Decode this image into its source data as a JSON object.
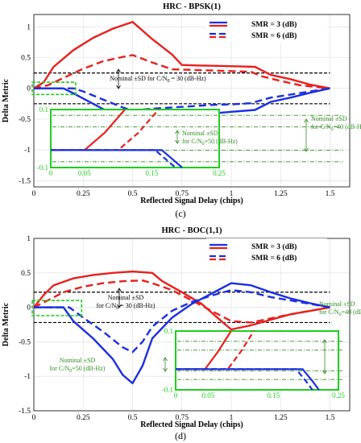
{
  "panels": [
    {
      "caption": "(c)",
      "legend_labels": [
        "SMR = 3 (dB)",
        "SMR = 6 (dB)"
      ]
    },
    {
      "caption": "(d)",
      "legend_labels": [
        "SMR = 3 (dB)",
        "SMR = 6 (dB)"
      ]
    }
  ],
  "colors": {
    "red": "#e8201c",
    "blue": "#1a2fe0",
    "green": "#1ecf1e",
    "darkgreen": "#2f8f1f",
    "black": "#000000"
  },
  "chart_data": [
    {
      "type": "line",
      "title": "HRC - BPSK(1)",
      "xlabel": "Reflected Signal Delay (chips)",
      "ylabel": "Delta Metric",
      "xlim": [
        0,
        1.6
      ],
      "ylim": [
        -1.6,
        1.2
      ],
      "xticks": [
        "0",
        "0.25",
        "0.5",
        "0.75",
        "1",
        "1.25",
        "1.5"
      ],
      "xtick_values": [
        0,
        0.25,
        0.5,
        0.75,
        1,
        1.25,
        1.5
      ],
      "yticks": [
        "1",
        "0.5",
        "0",
        "-0.5",
        "-1",
        "-1.5"
      ],
      "ytick_values": [
        1,
        0.5,
        0,
        -0.5,
        -1,
        -1.5
      ],
      "legend_position": "top-right",
      "series": [
        {
          "name": "SMR = 3 (dB)",
          "color": "red",
          "dash": false,
          "x": [
            0,
            0.05,
            0.1,
            0.2,
            0.3,
            0.4,
            0.5,
            0.6,
            0.7,
            0.75,
            0.85,
            1.0,
            1.12,
            1.2,
            1.3,
            1.4,
            1.5
          ],
          "y": [
            0,
            0.1,
            0.35,
            0.62,
            0.82,
            0.97,
            1.08,
            0.8,
            0.55,
            0.38,
            0.37,
            0.36,
            0.35,
            0.22,
            0.15,
            0.06,
            0
          ]
        },
        {
          "name": "SMR = 6 (dB)",
          "color": "red",
          "dash": true,
          "x": [
            0,
            0.07,
            0.15,
            0.25,
            0.35,
            0.45,
            0.5,
            0.6,
            0.7,
            0.8,
            0.9,
            1.0,
            1.1,
            1.15,
            1.25,
            1.35,
            1.5
          ],
          "y": [
            0,
            0.05,
            0.17,
            0.32,
            0.44,
            0.51,
            0.54,
            0.42,
            0.31,
            0.3,
            0.29,
            0.28,
            0.27,
            0.2,
            0.12,
            0.05,
            0
          ]
        },
        {
          "name": "SMR = 3 (dB)",
          "color": "blue",
          "dash": false,
          "x": [
            0,
            0.15,
            0.2,
            0.3,
            0.4,
            0.5,
            0.6,
            0.7,
            0.8,
            0.9,
            1.0,
            1.12,
            1.2,
            1.3,
            1.4,
            1.5
          ],
          "y": [
            0,
            0,
            -0.08,
            -0.25,
            -0.42,
            -0.52,
            -0.5,
            -0.47,
            -0.44,
            -0.41,
            -0.38,
            -0.35,
            -0.22,
            -0.15,
            -0.07,
            0
          ]
        },
        {
          "name": "SMR = 6 (dB)",
          "color": "blue",
          "dash": true,
          "x": [
            0,
            0.2,
            0.25,
            0.35,
            0.45,
            0.5,
            0.6,
            0.7,
            0.8,
            0.9,
            1.0,
            1.1,
            1.2,
            1.3,
            1.4,
            1.5
          ],
          "y": [
            0,
            0,
            -0.05,
            -0.18,
            -0.31,
            -0.36,
            -0.33,
            -0.31,
            -0.29,
            -0.27,
            -0.26,
            -0.24,
            -0.15,
            -0.1,
            -0.05,
            0
          ]
        }
      ],
      "thresholds": [
        {
          "y": 0.25,
          "color": "black"
        },
        {
          "y": -0.25,
          "color": "black"
        }
      ],
      "annotations": [
        {
          "text": "Nominal ±SD  for C/N",
          "sub": "0",
          "tail": " = 30 (dB-Hz)",
          "color": "black"
        }
      ],
      "inset": {
        "xlim": [
          0,
          0.25
        ],
        "ylim": [
          -0.1,
          0.1
        ],
        "xticks": [
          "0",
          "0.05",
          "0.15",
          "0.25"
        ],
        "xtick_values": [
          0,
          0.05,
          0.15,
          0.25
        ],
        "yticks": [
          "0.1",
          "-0.1"
        ],
        "ytick_values": [
          0.1,
          -0.1
        ],
        "lines": [
          {
            "color": "red",
            "dash": false,
            "x": [
              0,
              0.05,
              0.08,
              0.11
            ],
            "y": [
              -0.04,
              -0.04,
              0.02,
              0.1
            ]
          },
          {
            "color": "red",
            "dash": true,
            "x": [
              0,
              0.1,
              0.13,
              0.16
            ],
            "y": [
              -0.04,
              -0.04,
              0.02,
              0.1
            ]
          },
          {
            "color": "blue",
            "dash": false,
            "x": [
              0,
              0.165,
              0.18,
              0.195
            ],
            "y": [
              -0.04,
              -0.04,
              -0.07,
              -0.1
            ]
          },
          {
            "color": "blue",
            "dash": true,
            "x": [
              0,
              0.155,
              0.17,
              0.185
            ],
            "y": [
              -0.04,
              -0.04,
              -0.07,
              -0.1
            ]
          }
        ],
        "thresholds": [
          {
            "y": 0.08,
            "color": "darkgreen"
          },
          {
            "y": 0.04,
            "color": "darkgreen"
          },
          {
            "y": -0.04,
            "color": "darkgreen"
          },
          {
            "y": -0.08,
            "color": "darkgreen"
          }
        ],
        "annotations": [
          {
            "text1": "Nominal ±SD",
            "text2": "for C/N",
            "sub": "0",
            "tail": "=50 (dB-Hz)",
            "color": "darkgreen"
          },
          {
            "text1": "Nominal ±SD",
            "text2": "for C/N",
            "sub": "0",
            "tail": "=40 (dB-Hz)",
            "color": "darkgreen"
          }
        ]
      }
    },
    {
      "type": "line",
      "title": "HRC - BOC(1,1)",
      "xlabel": "Reflected Signal Delay (chips)",
      "ylabel": "Delta Metric",
      "xlim": [
        0,
        1.6
      ],
      "ylim": [
        -1.5,
        1.0
      ],
      "xticks": [
        "0",
        "0.25",
        "0.5",
        "0.75",
        "1",
        "1.25",
        "1.5"
      ],
      "xtick_values": [
        0,
        0.25,
        0.5,
        0.75,
        1,
        1.25,
        1.5
      ],
      "yticks": [
        "1",
        "0.5",
        "0",
        "-0.5",
        "-1",
        "-1.5"
      ],
      "ytick_values": [
        1,
        0.5,
        0,
        -0.5,
        -1,
        -1.5
      ],
      "legend_position": "top-right",
      "series": [
        {
          "name": "SMR = 3 (dB)",
          "color": "red",
          "dash": false,
          "x": [
            0,
            0.05,
            0.1,
            0.2,
            0.3,
            0.4,
            0.5,
            0.6,
            0.65,
            0.75,
            0.85,
            0.95,
            1.0,
            1.1,
            1.2,
            1.3,
            1.4,
            1.5
          ],
          "y": [
            0,
            0.18,
            0.32,
            0.42,
            0.47,
            0.5,
            0.52,
            0.5,
            0.38,
            0.22,
            0.05,
            -0.2,
            -0.32,
            -0.26,
            -0.18,
            -0.1,
            -0.05,
            0
          ]
        },
        {
          "name": "SMR = 6 (dB)",
          "color": "red",
          "dash": true,
          "x": [
            0,
            0.07,
            0.15,
            0.25,
            0.35,
            0.45,
            0.55,
            0.6,
            0.7,
            0.8,
            0.9,
            1.0,
            1.1,
            1.2,
            1.3,
            1.4,
            1.5
          ],
          "y": [
            0,
            0.1,
            0.22,
            0.3,
            0.35,
            0.38,
            0.39,
            0.35,
            0.25,
            0.1,
            -0.05,
            -0.2,
            -0.22,
            -0.16,
            -0.1,
            -0.05,
            0
          ]
        },
        {
          "name": "SMR = 3 (dB)",
          "color": "blue",
          "dash": false,
          "x": [
            0,
            0.15,
            0.2,
            0.3,
            0.4,
            0.45,
            0.5,
            0.55,
            0.6,
            0.7,
            0.8,
            0.9,
            1.0,
            1.1,
            1.2,
            1.3,
            1.4,
            1.5
          ],
          "y": [
            0,
            0,
            -0.2,
            -0.45,
            -0.75,
            -0.98,
            -1.1,
            -0.85,
            -0.45,
            -0.15,
            0.05,
            0.2,
            0.35,
            0.32,
            0.22,
            0.13,
            0.06,
            0
          ]
        },
        {
          "name": "SMR = 6 (dB)",
          "color": "blue",
          "dash": true,
          "x": [
            0,
            0.18,
            0.25,
            0.35,
            0.45,
            0.5,
            0.55,
            0.6,
            0.7,
            0.8,
            0.9,
            1.0,
            1.1,
            1.2,
            1.3,
            1.4,
            1.5
          ],
          "y": [
            0,
            0,
            -0.15,
            -0.35,
            -0.58,
            -0.65,
            -0.5,
            -0.28,
            -0.05,
            0.08,
            0.17,
            0.25,
            0.22,
            0.15,
            0.1,
            0.05,
            0
          ]
        }
      ],
      "thresholds": [
        {
          "y": 0.22,
          "color": "black"
        },
        {
          "y": -0.22,
          "color": "black"
        }
      ],
      "annotations": [
        {
          "text": "Nominal ±SD",
          "text2": "for C/N",
          "sub": "0",
          "tail": " = 30 (dB-Hz)",
          "color": "black"
        }
      ],
      "inset": {
        "xlim": [
          0,
          0.25
        ],
        "ylim": [
          -0.1,
          0.1
        ],
        "xticks": [
          "0",
          "0.05",
          "0.15",
          "0.25"
        ],
        "xtick_values": [
          0,
          0.05,
          0.15,
          0.25
        ],
        "yticks": [
          "0.1",
          "-0.1"
        ],
        "ytick_values": [
          0.1,
          -0.1
        ],
        "lines": [
          {
            "color": "red",
            "dash": false,
            "x": [
              0,
              0.045,
              0.065,
              0.085
            ],
            "y": [
              -0.03,
              -0.03,
              0.03,
              0.1
            ]
          },
          {
            "color": "red",
            "dash": true,
            "x": [
              0,
              0.08,
              0.1,
              0.12
            ],
            "y": [
              -0.03,
              -0.03,
              0.03,
              0.1
            ]
          },
          {
            "color": "blue",
            "dash": false,
            "x": [
              0,
              0.195,
              0.21,
              0.22
            ],
            "y": [
              -0.03,
              -0.03,
              -0.07,
              -0.1
            ]
          },
          {
            "color": "blue",
            "dash": true,
            "x": [
              0,
              0.185,
              0.2,
              0.21
            ],
            "y": [
              -0.03,
              -0.03,
              -0.07,
              -0.1
            ]
          }
        ],
        "thresholds": [
          {
            "y": 0.065,
            "color": "darkgreen"
          },
          {
            "y": 0.035,
            "color": "darkgreen"
          },
          {
            "y": -0.035,
            "color": "darkgreen"
          },
          {
            "y": -0.065,
            "color": "darkgreen"
          }
        ],
        "annotations": [
          {
            "text1": "Nominal ±SD",
            "text2": "for C/N",
            "sub": "0",
            "tail": "=50 (dB-Hz)",
            "color": "darkgreen"
          },
          {
            "text1": "Nominal ±SD",
            "text2": "for C/N",
            "sub": "0",
            "tail": "=40 (dB-Hz)",
            "color": "darkgreen"
          }
        ]
      }
    }
  ]
}
